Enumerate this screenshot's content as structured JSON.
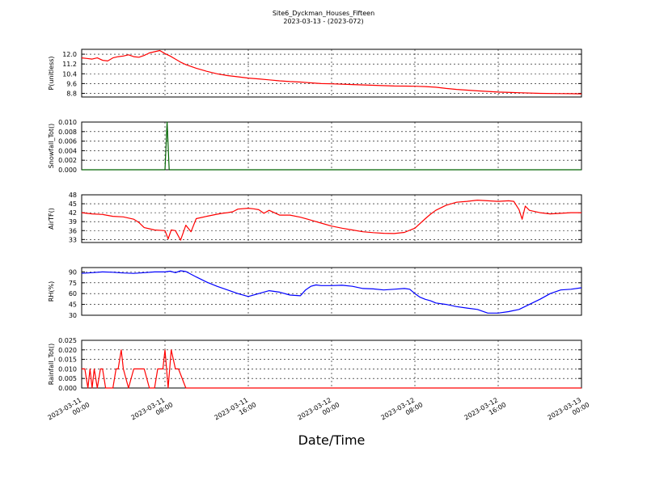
{
  "figure": {
    "title": "Site6_Dyckman_Houses_Fifteen",
    "subtitle": "2023-03-13 - (2023-072)",
    "xlabel": "Date/Time",
    "x_ticks": [
      {
        "line1": "2023-03-11",
        "line2": "00:00",
        "hour": 0
      },
      {
        "line1": "2023-03-11",
        "line2": "08:00",
        "hour": 8
      },
      {
        "line1": "2023-03-11",
        "line2": "16:00",
        "hour": 16
      },
      {
        "line1": "2023-03-12",
        "line2": "00:00",
        "hour": 24
      },
      {
        "line1": "2023-03-12",
        "line2": "08:00",
        "hour": 32
      },
      {
        "line1": "2023-03-12",
        "line2": "16:00",
        "hour": 40
      },
      {
        "line1": "2023-03-13",
        "line2": "00:00",
        "hour": 48
      }
    ]
  },
  "chart_data": [
    {
      "type": "line",
      "ylabel": "P(unitless)",
      "color": "#ff0000",
      "ylim": [
        8.5,
        12.4
      ],
      "yticks": [
        "12.0",
        "11.2",
        "10.4",
        "9.6",
        "8.8"
      ],
      "grid": true,
      "x": [
        0,
        0.5,
        1,
        1.5,
        2,
        2.5,
        3,
        3.5,
        4,
        4.5,
        5,
        5.5,
        6,
        6.5,
        7,
        7.5,
        8,
        8.5,
        9,
        9.5,
        10,
        10.5,
        11,
        12,
        13,
        14,
        15,
        16,
        17,
        18,
        19,
        20,
        21,
        22,
        23,
        24,
        26,
        28,
        30,
        32,
        33,
        34,
        35,
        36,
        38,
        40,
        42,
        44,
        46,
        47,
        48
      ],
      "y": [
        11.7,
        11.65,
        11.6,
        11.7,
        11.5,
        11.45,
        11.7,
        11.8,
        11.85,
        11.95,
        11.8,
        11.75,
        11.9,
        12.1,
        12.2,
        12.3,
        12.05,
        11.85,
        11.6,
        11.35,
        11.15,
        11.0,
        10.85,
        10.6,
        10.4,
        10.25,
        10.15,
        10.05,
        9.98,
        9.9,
        9.82,
        9.76,
        9.72,
        9.66,
        9.6,
        9.58,
        9.52,
        9.46,
        9.4,
        9.38,
        9.35,
        9.3,
        9.2,
        9.12,
        9.0,
        8.9,
        8.85,
        8.8,
        8.78,
        8.77,
        8.76
      ]
    },
    {
      "type": "line",
      "ylabel": "Snowfall_Tot()",
      "color": "#006400",
      "ylim": [
        0,
        0.01
      ],
      "yticks": [
        "0.010",
        "0.008",
        "0.006",
        "0.004",
        "0.002",
        "0.000"
      ],
      "grid": true,
      "x": [
        0,
        7.8,
        8.0,
        8.2,
        8.4,
        48
      ],
      "y": [
        0,
        0,
        0,
        0.01,
        0,
        0
      ]
    },
    {
      "type": "line",
      "ylabel": "AirTF()",
      "color": "#ff0000",
      "ylim": [
        32,
        48
      ],
      "yticks": [
        "48",
        "45",
        "42",
        "39",
        "36",
        "33"
      ],
      "grid": true,
      "x": [
        0,
        1,
        2,
        3,
        4,
        5,
        5.5,
        6,
        6.5,
        7,
        8,
        8.3,
        8.6,
        9,
        9.5,
        10,
        10.5,
        11,
        12,
        13,
        13.5,
        14,
        14.5,
        15,
        16,
        16.5,
        17,
        17.5,
        18,
        19,
        20,
        21,
        22,
        23,
        24,
        25,
        26,
        27,
        28,
        29,
        30,
        31,
        32,
        33,
        33.5,
        34,
        35,
        36,
        37,
        38,
        39,
        40,
        41,
        41.5,
        42,
        42.3,
        42.6,
        43,
        44,
        45,
        46,
        47,
        48
      ],
      "y": [
        42,
        41.6,
        41.4,
        40.8,
        40.6,
        39.8,
        38.7,
        37.0,
        36.6,
        36.2,
        36.0,
        33.2,
        36.2,
        36.0,
        32.8,
        37.8,
        35.6,
        40.0,
        40.8,
        41.5,
        41.8,
        42.0,
        42.3,
        43.2,
        43.5,
        43.3,
        43.0,
        41.8,
        42.8,
        41.2,
        41.2,
        40.5,
        39.5,
        38.5,
        37.5,
        36.8,
        36.2,
        35.6,
        35.3,
        35.1,
        35.0,
        35.4,
        36.8,
        40.0,
        41.5,
        42.8,
        44.5,
        45.5,
        45.8,
        46.2,
        46.0,
        45.8,
        46.0,
        45.8,
        43.0,
        39.8,
        44.2,
        42.8,
        42.0,
        41.6,
        41.8,
        42.0,
        42.0
      ]
    },
    {
      "type": "line",
      "ylabel": "RH(%)",
      "color": "#0000ff",
      "ylim": [
        30,
        96
      ],
      "yticks": [
        "90",
        "75",
        "60",
        "45",
        "30"
      ],
      "grid": true,
      "x": [
        0,
        1,
        2,
        3,
        4,
        5,
        6,
        7,
        8,
        8.5,
        9,
        9.5,
        10,
        11,
        12,
        13,
        14,
        15,
        16,
        17,
        18,
        19,
        20,
        21,
        21.5,
        22,
        22.5,
        23,
        24,
        25,
        26,
        27,
        28,
        29,
        30,
        31,
        31.5,
        32,
        32.5,
        33,
        33.5,
        34,
        35,
        36,
        37,
        38,
        39,
        40,
        41,
        42,
        43,
        44,
        45,
        46,
        47,
        48
      ],
      "y": [
        88,
        89,
        90,
        89.5,
        88.5,
        88,
        89,
        90,
        90,
        91,
        89,
        91.5,
        90.5,
        83,
        76,
        70,
        65,
        60,
        56,
        60,
        64,
        62,
        58,
        57,
        65,
        70,
        72,
        71,
        71,
        71.5,
        70,
        67,
        66.5,
        65,
        66,
        67,
        66,
        60,
        55,
        52,
        50,
        47,
        45,
        42,
        40,
        38,
        33,
        33,
        35,
        38,
        45,
        52,
        60,
        65,
        66,
        68
      ]
    },
    {
      "type": "line",
      "ylabel": "Rainfall_Tot()",
      "color": "#ff0000",
      "ylim": [
        0,
        0.025
      ],
      "yticks": [
        "0.025",
        "0.020",
        "0.015",
        "0.010",
        "0.005",
        "0.000"
      ],
      "grid": true,
      "x": [
        0,
        0.3,
        0.6,
        0.8,
        1.0,
        1.2,
        1.5,
        1.8,
        2.0,
        2.3,
        2.6,
        3.0,
        3.3,
        3.5,
        3.8,
        4.0,
        4.5,
        5.0,
        5.5,
        6.0,
        6.5,
        7.0,
        7.3,
        7.6,
        7.8,
        8.0,
        8.3,
        8.6,
        9.0,
        9.3,
        10,
        20,
        30,
        40,
        48
      ],
      "y": [
        0.01,
        0.01,
        0,
        0.01,
        0,
        0.01,
        0,
        0.01,
        0.01,
        0,
        0,
        0,
        0.01,
        0.01,
        0.02,
        0.01,
        0,
        0.01,
        0.01,
        0.01,
        0,
        0,
        0.01,
        0.01,
        0.01,
        0.02,
        0,
        0.02,
        0.01,
        0.01,
        0,
        0,
        0,
        0,
        0
      ]
    }
  ]
}
